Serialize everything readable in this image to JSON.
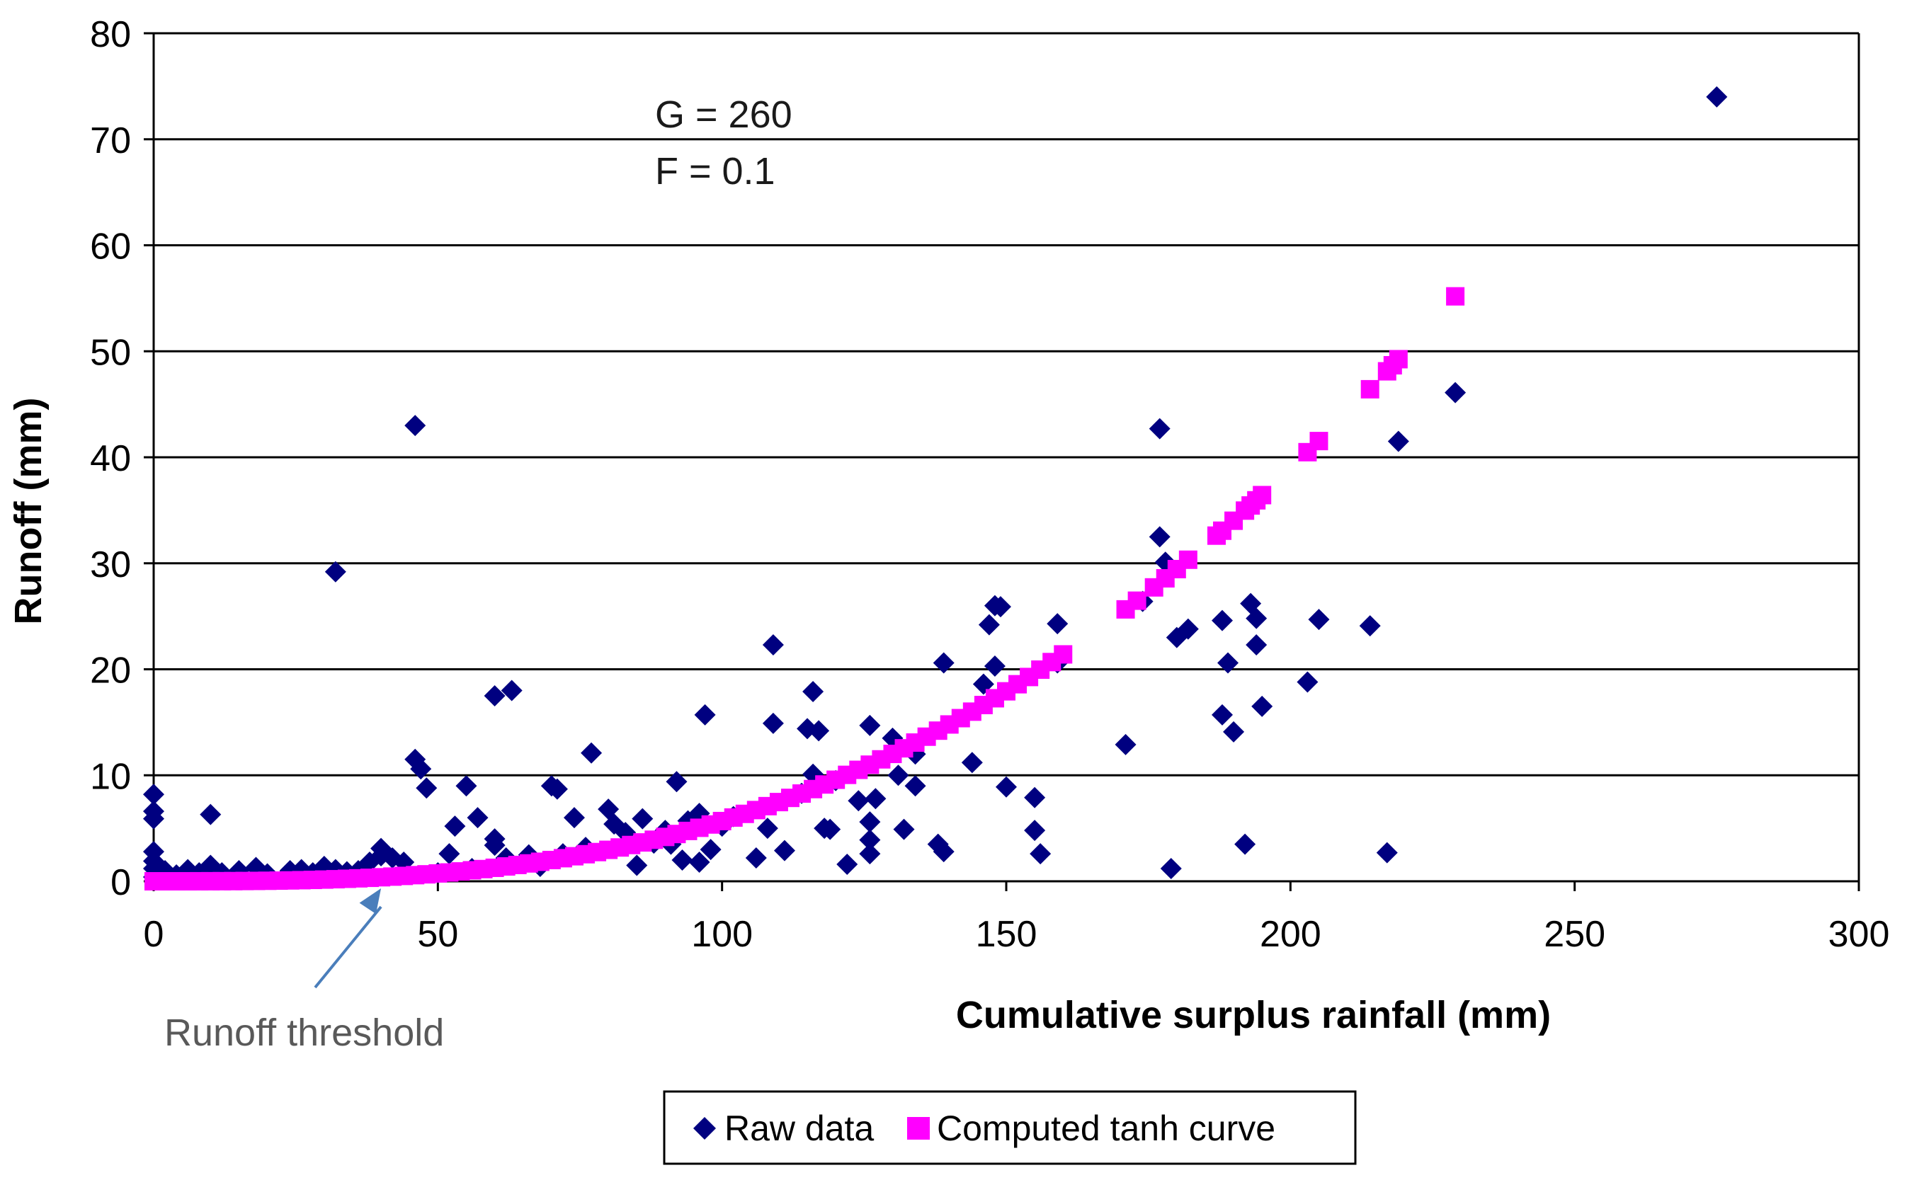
{
  "chart_data": {
    "type": "scatter",
    "title": "",
    "xlabel": "Cumulative surplus rainfall (mm)",
    "ylabel": "Runoff (mm)",
    "xlim": [
      0,
      300
    ],
    "ylim": [
      0,
      80
    ],
    "xticks": [
      0,
      50,
      100,
      150,
      200,
      250,
      300
    ],
    "yticks": [
      0,
      10,
      20,
      30,
      40,
      50,
      60,
      70,
      80
    ],
    "grid": "horizontal",
    "legend_position": "bottom-center",
    "annotations": {
      "params": [
        "G = 260",
        "F = 0.1"
      ],
      "threshold_label": "Runoff threshold",
      "threshold_x": 40,
      "threshold_y": 0
    },
    "colors": {
      "raw": "#000080",
      "tanh": "#ff00ff",
      "grid": "#000000",
      "arrow": "#4a7ebb",
      "annotation_text": "#595959"
    },
    "series": [
      {
        "name": "Raw data",
        "marker": "diamond",
        "points": [
          [
            0,
            8.2
          ],
          [
            0,
            6.6
          ],
          [
            0,
            5.9
          ],
          [
            0,
            2.8
          ],
          [
            0,
            1.9
          ],
          [
            0,
            1.2
          ],
          [
            0,
            0.4
          ],
          [
            2,
            1.0
          ],
          [
            4,
            0.6
          ],
          [
            6,
            1.1
          ],
          [
            8,
            0.8
          ],
          [
            10,
            6.3
          ],
          [
            10,
            1.5
          ],
          [
            12,
            0.8
          ],
          [
            15,
            1.0
          ],
          [
            18,
            1.3
          ],
          [
            20,
            0.7
          ],
          [
            24,
            1.0
          ],
          [
            26,
            1.1
          ],
          [
            28,
            0.8
          ],
          [
            30,
            1.4
          ],
          [
            32,
            1.1
          ],
          [
            32,
            29.2
          ],
          [
            34,
            0.9
          ],
          [
            36,
            1.0
          ],
          [
            38,
            1.8
          ],
          [
            40,
            2.4
          ],
          [
            40,
            3.1
          ],
          [
            42,
            2.2
          ],
          [
            44,
            1.8
          ],
          [
            46,
            11.5
          ],
          [
            46,
            43.0
          ],
          [
            47,
            10.6
          ],
          [
            48,
            8.8
          ],
          [
            50,
            0.8
          ],
          [
            52,
            2.6
          ],
          [
            53,
            5.2
          ],
          [
            55,
            9.0
          ],
          [
            56,
            1.2
          ],
          [
            57,
            6.0
          ],
          [
            60,
            17.5
          ],
          [
            60,
            4.0
          ],
          [
            60,
            3.4
          ],
          [
            62,
            2.2
          ],
          [
            63,
            18.0
          ],
          [
            65,
            1.8
          ],
          [
            66,
            2.5
          ],
          [
            68,
            1.4
          ],
          [
            70,
            9.0
          ],
          [
            71,
            8.7
          ],
          [
            72,
            2.6
          ],
          [
            74,
            6.0
          ],
          [
            76,
            3.2
          ],
          [
            77,
            12.1
          ],
          [
            80,
            6.8
          ],
          [
            81,
            5.4
          ],
          [
            83,
            4.6
          ],
          [
            85,
            1.5
          ],
          [
            86,
            5.9
          ],
          [
            88,
            3.6
          ],
          [
            90,
            4.8
          ],
          [
            91,
            3.5
          ],
          [
            92,
            9.4
          ],
          [
            93,
            2.0
          ],
          [
            94,
            5.7
          ],
          [
            96,
            6.4
          ],
          [
            96,
            1.8
          ],
          [
            97,
            15.7
          ],
          [
            98,
            3.0
          ],
          [
            100,
            5.2
          ],
          [
            102,
            6.1
          ],
          [
            106,
            2.2
          ],
          [
            108,
            5.0
          ],
          [
            109,
            22.3
          ],
          [
            109,
            14.9
          ],
          [
            111,
            2.9
          ],
          [
            114,
            8.3
          ],
          [
            115,
            14.4
          ],
          [
            116,
            17.9
          ],
          [
            116,
            10.1
          ],
          [
            117,
            14.2
          ],
          [
            118,
            5.0
          ],
          [
            119,
            4.9
          ],
          [
            120,
            9.5
          ],
          [
            122,
            1.6
          ],
          [
            124,
            7.6
          ],
          [
            126,
            14.7
          ],
          [
            126,
            5.6
          ],
          [
            126,
            3.9
          ],
          [
            126,
            2.6
          ],
          [
            127,
            7.8
          ],
          [
            130,
            13.5
          ],
          [
            131,
            10.0
          ],
          [
            132,
            4.9
          ],
          [
            134,
            12.0
          ],
          [
            134,
            9.0
          ],
          [
            138,
            3.5
          ],
          [
            139,
            2.8
          ],
          [
            139,
            20.6
          ],
          [
            144,
            11.2
          ],
          [
            146,
            18.6
          ],
          [
            147,
            24.2
          ],
          [
            148,
            20.3
          ],
          [
            148,
            26.0
          ],
          [
            149,
            25.9
          ],
          [
            150,
            8.9
          ],
          [
            155,
            4.8
          ],
          [
            155,
            7.9
          ],
          [
            156,
            2.6
          ],
          [
            159,
            24.3
          ],
          [
            159,
            20.6
          ],
          [
            171,
            12.9
          ],
          [
            174,
            26.4
          ],
          [
            177,
            42.7
          ],
          [
            177,
            32.5
          ],
          [
            178,
            30.1
          ],
          [
            179,
            1.2
          ],
          [
            180,
            23.0
          ],
          [
            182,
            23.8
          ],
          [
            188,
            15.7
          ],
          [
            188,
            24.6
          ],
          [
            189,
            20.6
          ],
          [
            190,
            14.1
          ],
          [
            192,
            3.5
          ],
          [
            193,
            26.2
          ],
          [
            194,
            24.8
          ],
          [
            194,
            22.3
          ],
          [
            195,
            16.5
          ],
          [
            203,
            18.8
          ],
          [
            205,
            24.7
          ],
          [
            214,
            24.1
          ],
          [
            217,
            2.7
          ],
          [
            219,
            41.5
          ],
          [
            229,
            46.1
          ],
          [
            275,
            74.0
          ]
        ]
      },
      {
        "name": "Computed tanh curve",
        "marker": "square",
        "function": {
          "G": 260,
          "F": 0.1
        }
      }
    ]
  }
}
